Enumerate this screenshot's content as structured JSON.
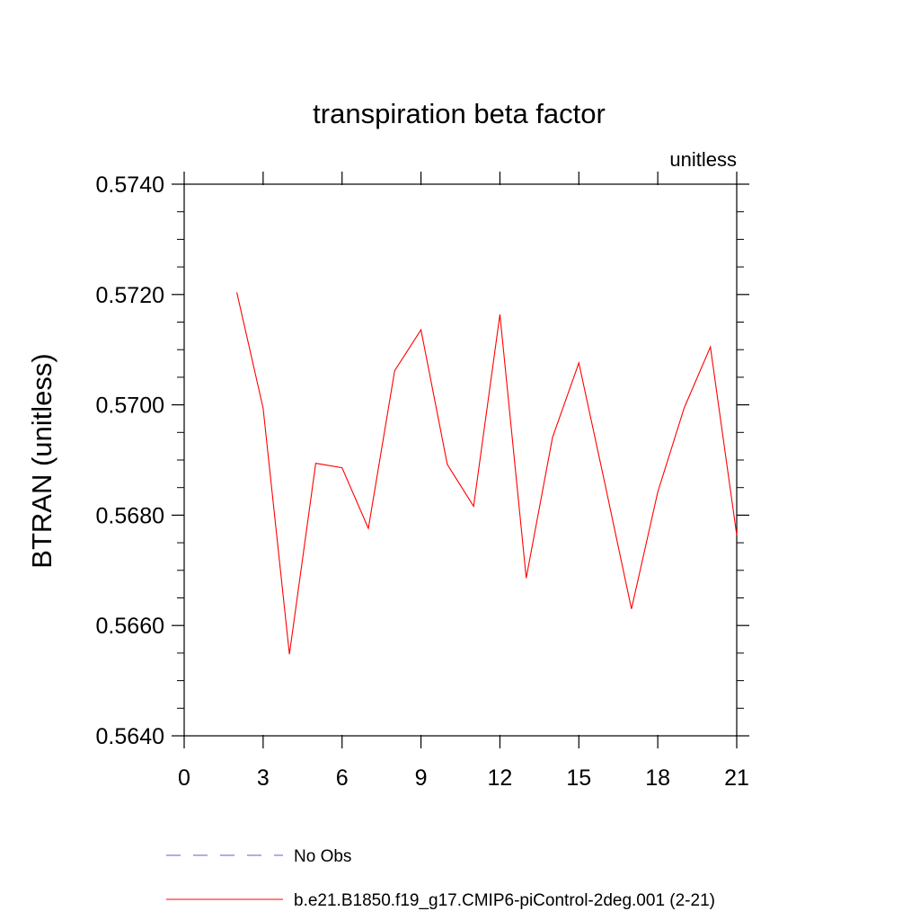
{
  "chart_data": {
    "type": "line",
    "title": "transpiration beta factor",
    "units_label": "unitless",
    "ylabel": "BTRAN  (unitless)",
    "xlabel": "",
    "xlim": [
      0,
      21
    ],
    "ylim": [
      0.564,
      0.574
    ],
    "x_ticks": [
      0,
      3,
      6,
      9,
      12,
      15,
      18,
      21
    ],
    "x_tick_labels": [
      "0",
      "3",
      "6",
      "9",
      "12",
      "15",
      "18",
      "21"
    ],
    "y_ticks": [
      0.564,
      0.566,
      0.568,
      0.57,
      0.572,
      0.574
    ],
    "y_tick_labels": [
      "0.5640",
      "0.5660",
      "0.5680",
      "0.5700",
      "0.5720",
      "0.5740"
    ],
    "grid": false,
    "legend_position": "bottom",
    "series": [
      {
        "name": "No Obs",
        "color": "#6a5acd",
        "style": "dashed",
        "x": [],
        "y": []
      },
      {
        "name": "b.e21.B1850.f19_g17.CMIP6-piControl-2deg.001 (2-21)",
        "color": "#ff0000",
        "style": "solid",
        "x": [
          2,
          3,
          4,
          5,
          6,
          7,
          8,
          9,
          10,
          11,
          12,
          13,
          14,
          15,
          16,
          17,
          18,
          19,
          20,
          21
        ],
        "y": [
          0.57204,
          0.56994,
          0.56548,
          0.56894,
          0.56886,
          0.56776,
          0.57062,
          0.57136,
          0.56892,
          0.56816,
          0.57164,
          0.56686,
          0.56941,
          0.57076,
          0.56855,
          0.5663,
          0.56842,
          0.56994,
          0.57105,
          0.56764
        ]
      }
    ]
  }
}
